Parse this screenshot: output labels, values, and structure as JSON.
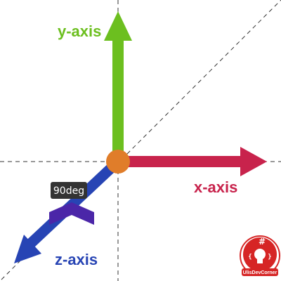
{
  "axes": {
    "y": {
      "label": "y-axis",
      "color": "#6cbf1f"
    },
    "x": {
      "label": "x-axis",
      "color": "#c8234c"
    },
    "z": {
      "label": "z-axis",
      "color": "#2744b4"
    }
  },
  "rotation": {
    "label": "90deg",
    "chevron_color": "#4b26a8",
    "tooltip_bg": "#333333"
  },
  "origin": {
    "color": "#e07d2a"
  },
  "guides": {
    "color": "#333333"
  },
  "logo": {
    "text": "UlisDevCorner",
    "color": "#d62525"
  }
}
